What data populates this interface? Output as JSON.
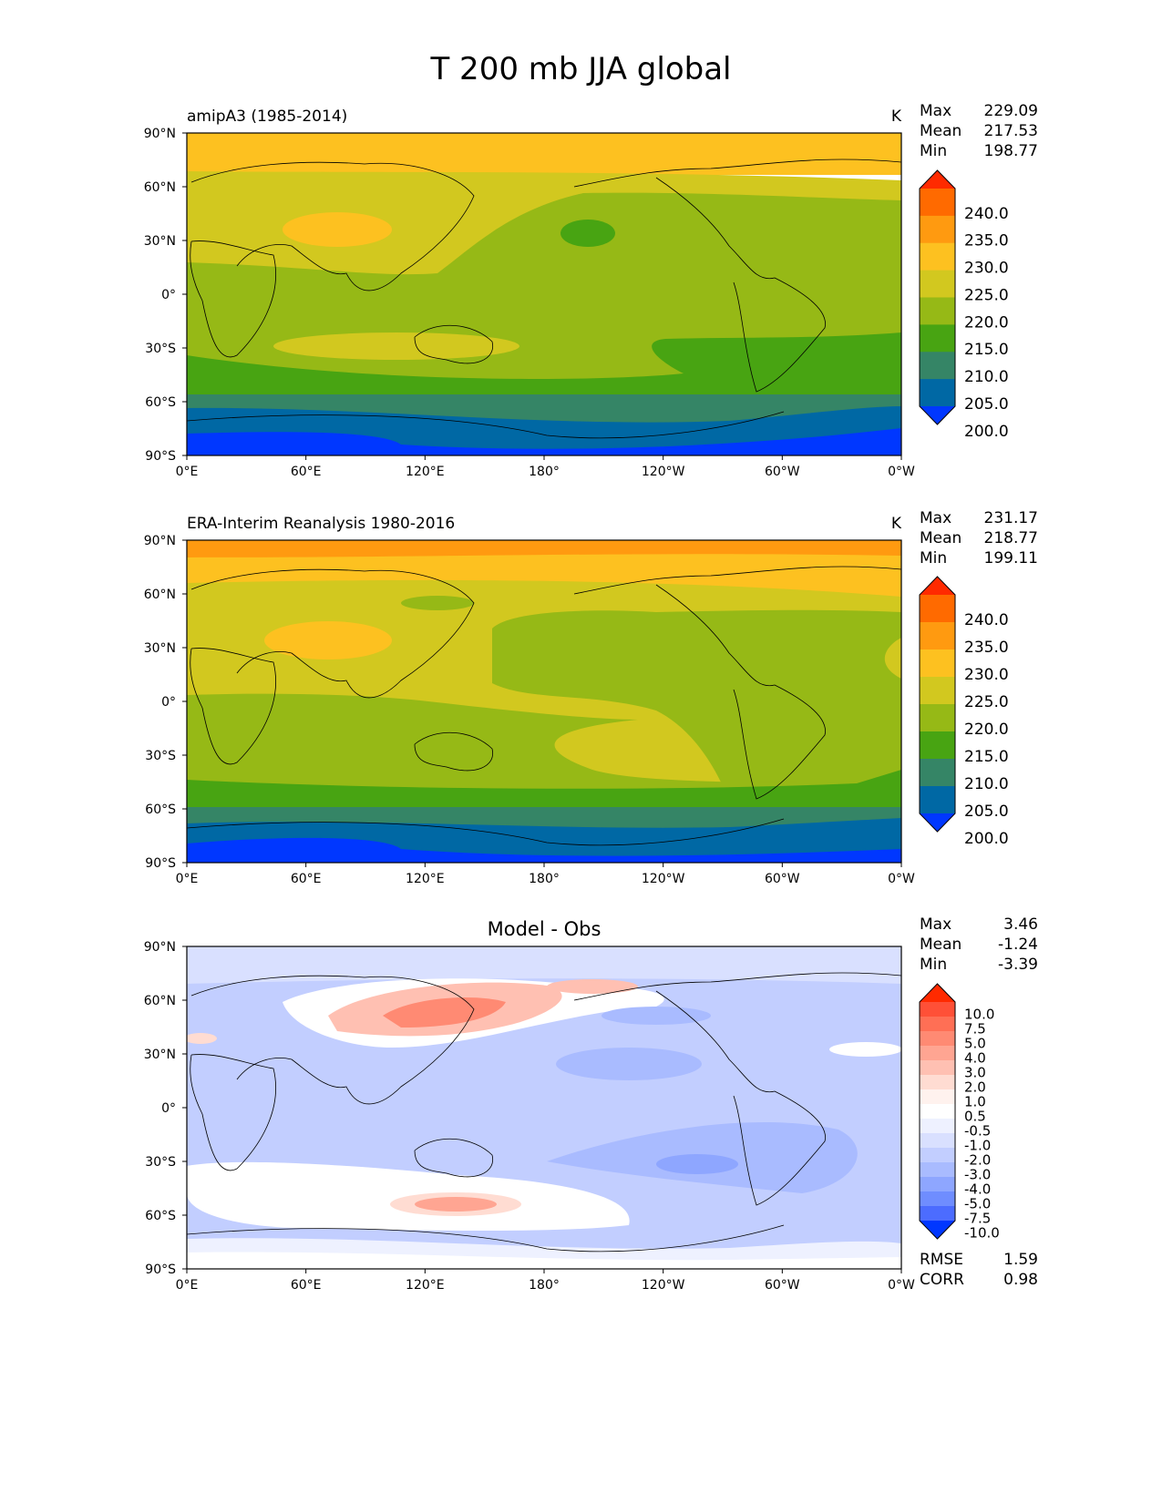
{
  "figure": {
    "title": "T 200 mb JJA global"
  },
  "chart_data": [
    {
      "type": "contour_map",
      "left_title": "amipA3 (1985-2014)",
      "center_title": "",
      "units": "K",
      "stats": {
        "max_label": "Max",
        "max": "229.09",
        "mean_label": "Mean",
        "mean": "217.53",
        "min_label": "Min",
        "min": "198.77"
      },
      "x_ticks": [
        "0°E",
        "60°E",
        "120°E",
        "180°",
        "120°W",
        "60°W",
        "0°W"
      ],
      "y_ticks": [
        "90°N",
        "60°N",
        "30°N",
        "0°",
        "30°S",
        "60°S",
        "90°S"
      ],
      "colorbar": {
        "labels": [
          "240.0",
          "235.0",
          "230.0",
          "225.0",
          "220.0",
          "215.0",
          "210.0",
          "205.0",
          "200.0"
        ],
        "colors": [
          "#ff2a00",
          "#ff6a00",
          "#ff9a10",
          "#fdc120",
          "#d2c81f",
          "#96b916",
          "#48a412",
          "#358566",
          "#0068a4",
          "#0037ff"
        ]
      }
    },
    {
      "type": "contour_map",
      "left_title": "ERA-Interim Reanalysis 1980-2016",
      "center_title": "",
      "units": "K",
      "stats": {
        "max_label": "Max",
        "max": "231.17",
        "mean_label": "Mean",
        "mean": "218.77",
        "min_label": "Min",
        "min": "199.11"
      },
      "x_ticks": [
        "0°E",
        "60°E",
        "120°E",
        "180°",
        "120°W",
        "60°W",
        "0°W"
      ],
      "y_ticks": [
        "90°N",
        "60°N",
        "30°N",
        "0°",
        "30°S",
        "60°S",
        "90°S"
      ],
      "colorbar": {
        "labels": [
          "240.0",
          "235.0",
          "230.0",
          "225.0",
          "220.0",
          "215.0",
          "210.0",
          "205.0",
          "200.0"
        ],
        "colors": [
          "#ff2a00",
          "#ff6a00",
          "#ff9a10",
          "#fdc120",
          "#d2c81f",
          "#96b916",
          "#48a412",
          "#358566",
          "#0068a4",
          "#0037ff"
        ]
      }
    },
    {
      "type": "contour_map",
      "left_title": "",
      "center_title": "Model - Obs",
      "units": "",
      "stats": {
        "max_label": "Max",
        "max": "3.46",
        "mean_label": "Mean",
        "mean": "-1.24",
        "min_label": "Min",
        "min": "-3.39"
      },
      "metrics": {
        "rmse_label": "RMSE",
        "rmse": "1.59",
        "corr_label": "CORR",
        "corr": "0.98"
      },
      "x_ticks": [
        "0°E",
        "60°E",
        "120°E",
        "180°",
        "120°W",
        "60°W",
        "0°W"
      ],
      "y_ticks": [
        "90°N",
        "60°N",
        "30°N",
        "0°",
        "30°S",
        "60°S",
        "90°S"
      ],
      "colorbar": {
        "labels": [
          "10.0",
          "7.5",
          "5.0",
          "4.0",
          "3.0",
          "2.0",
          "1.0",
          "0.5",
          "-0.5",
          "-1.0",
          "-2.0",
          "-3.0",
          "-4.0",
          "-5.0",
          "-7.5",
          "-10.0"
        ],
        "colors": [
          "#ff2a00",
          "#ff5037",
          "#ff6f55",
          "#ff8a73",
          "#ffa592",
          "#ffc0b2",
          "#ffdcd2",
          "#fff2ee",
          "#ffffff",
          "#eef1ff",
          "#d9e0ff",
          "#c2ceff",
          "#a9bbff",
          "#8ea6ff",
          "#6f8dff",
          "#4c6cff",
          "#0037ff"
        ]
      }
    }
  ]
}
